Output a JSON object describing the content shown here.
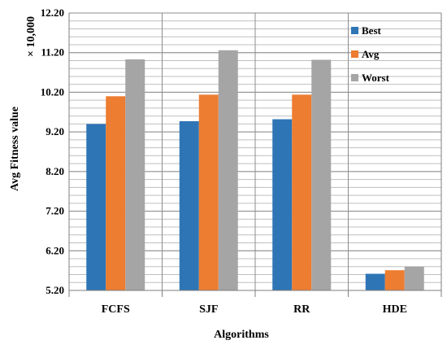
{
  "chart_data": {
    "type": "bar",
    "categories": [
      "FCFS",
      "SJF",
      "RR",
      "HDE"
    ],
    "series": [
      {
        "name": "Best",
        "color": "#2E75B6",
        "values": [
          9.4,
          9.47,
          9.52,
          5.62
        ]
      },
      {
        "name": "Avg",
        "color": "#ED7D31",
        "values": [
          10.1,
          10.14,
          10.14,
          5.71
        ]
      },
      {
        "name": "Worst",
        "color": "#A5A5A5",
        "values": [
          11.03,
          11.26,
          11.02,
          5.8
        ]
      }
    ],
    "xlabel": "Algorithms",
    "ylabel": "Avg Fitness value",
    "scale_note": "× 10,000",
    "ylim": [
      5.2,
      12.2
    ],
    "yticks": [
      "5.20",
      "6.20",
      "7.20",
      "8.20",
      "9.20",
      "10.20",
      "11.20",
      "12.20"
    ],
    "ytick_values": [
      5.2,
      6.2,
      7.2,
      8.2,
      9.2,
      10.2,
      11.2,
      12.2
    ],
    "grid": true,
    "legend_position": "top-right"
  }
}
